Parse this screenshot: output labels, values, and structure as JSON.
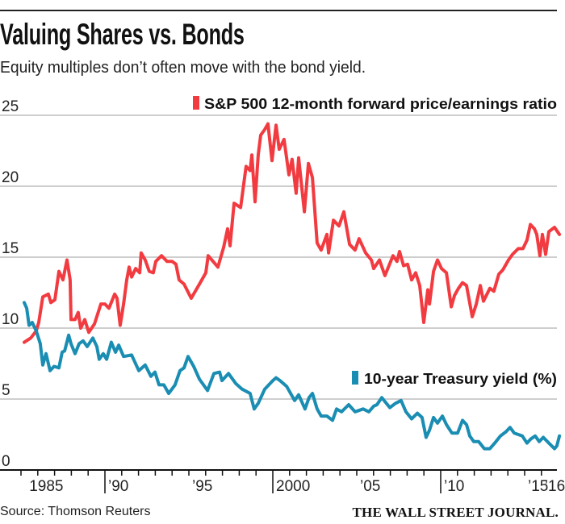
{
  "header": {
    "title": "Valuing Shares vs. Bonds",
    "subtitle": "Equity multiples don’t often move with the bond yield."
  },
  "footer": {
    "source": "Source: Thomson Reuters",
    "publisher": "THE WALL STREET JOURNAL."
  },
  "colors": {
    "pe": "#f23b40",
    "yield": "#1a8db3",
    "grid": "#bdbdbd",
    "axis": "#111111"
  },
  "chart_data": {
    "type": "line",
    "title": "Valuing Shares vs. Bonds",
    "xlabel": "",
    "ylabel": "",
    "xlim": [
      1984.5,
      2017.2
    ],
    "ylim": [
      0,
      25
    ],
    "grid": true,
    "yticks": [
      {
        "value": 0,
        "label": "0"
      },
      {
        "value": 5,
        "label": "5"
      },
      {
        "value": 10,
        "label": "10"
      },
      {
        "value": 15,
        "label": "15"
      },
      {
        "value": 20,
        "label": "20"
      },
      {
        "value": 25,
        "label": "25"
      }
    ],
    "xticks_minor": [
      1985,
      1986,
      1987,
      1988,
      1989,
      1991,
      1992,
      1993,
      1994,
      1995,
      1996,
      1997,
      1998,
      1999,
      2001,
      2002,
      2003,
      2004,
      2005,
      2006,
      2007,
      2008,
      2009,
      2011,
      2012,
      2013,
      2014,
      2015,
      2016
    ],
    "xticks_major": [
      1990,
      2000,
      2010
    ],
    "xtick_labels": [
      {
        "year": 1985.3,
        "label": "1985"
      },
      {
        "year": 1990,
        "label": "’90"
      },
      {
        "year": 1995,
        "label": "’95"
      },
      {
        "year": 2000,
        "label": "2000"
      },
      {
        "year": 2005,
        "label": "’05"
      },
      {
        "year": 2010,
        "label": "’10"
      },
      {
        "year": 2015,
        "label": "’15"
      },
      {
        "year": 2016,
        "label": "’16"
      }
    ],
    "series": [
      {
        "name": "S&P 500 12-month forward price/earnings ratio",
        "legend_position": "top-right",
        "points": [
          [
            1985.19,
            9.0
          ],
          [
            1985.58,
            9.3
          ],
          [
            1985.91,
            9.8
          ],
          [
            1986.06,
            10.4
          ],
          [
            1986.3,
            12.2
          ],
          [
            1986.63,
            12.4
          ],
          [
            1986.78,
            11.8
          ],
          [
            1987.02,
            12.0
          ],
          [
            1987.26,
            14.0
          ],
          [
            1987.5,
            13.4
          ],
          [
            1987.74,
            14.8
          ],
          [
            1987.93,
            13.4
          ],
          [
            1987.98,
            10.6
          ],
          [
            1988.22,
            10.6
          ],
          [
            1988.41,
            11.1
          ],
          [
            1988.56,
            10.0
          ],
          [
            1988.8,
            10.6
          ],
          [
            1989.04,
            9.7
          ],
          [
            1989.38,
            10.3
          ],
          [
            1989.76,
            11.7
          ],
          [
            1990.0,
            11.7
          ],
          [
            1990.24,
            11.4
          ],
          [
            1990.58,
            12.4
          ],
          [
            1990.72,
            12.1
          ],
          [
            1990.91,
            10.2
          ],
          [
            1991.11,
            11.7
          ],
          [
            1991.3,
            13.4
          ],
          [
            1991.44,
            14.3
          ],
          [
            1991.59,
            13.6
          ],
          [
            1991.83,
            14.2
          ],
          [
            1992.07,
            13.9
          ],
          [
            1992.16,
            15.3
          ],
          [
            1992.4,
            14.8
          ],
          [
            1992.64,
            14.0
          ],
          [
            1992.88,
            13.9
          ],
          [
            1993.03,
            14.7
          ],
          [
            1993.37,
            15.1
          ],
          [
            1993.7,
            14.7
          ],
          [
            1994.0,
            14.7
          ],
          [
            1994.23,
            14.5
          ],
          [
            1994.42,
            13.4
          ],
          [
            1994.71,
            13.1
          ],
          [
            1995.14,
            12.1
          ],
          [
            1995.63,
            13.1
          ],
          [
            1996.01,
            13.9
          ],
          [
            1996.15,
            15.1
          ],
          [
            1996.73,
            14.3
          ],
          [
            1997.07,
            15.7
          ],
          [
            1997.31,
            17.0
          ],
          [
            1997.45,
            15.8
          ],
          [
            1997.69,
            18.8
          ],
          [
            1998.08,
            18.5
          ],
          [
            1998.41,
            21.4
          ],
          [
            1998.65,
            21.1
          ],
          [
            1998.75,
            22.2
          ],
          [
            1998.94,
            18.9
          ],
          [
            1999.13,
            22.2
          ],
          [
            1999.28,
            23.6
          ],
          [
            1999.52,
            24.0
          ],
          [
            1999.71,
            24.4
          ],
          [
            1999.95,
            21.8
          ],
          [
            2000.19,
            24.3
          ],
          [
            2000.38,
            22.6
          ],
          [
            2000.67,
            23.3
          ],
          [
            2000.96,
            20.8
          ],
          [
            2001.15,
            21.9
          ],
          [
            2001.39,
            19.5
          ],
          [
            2001.54,
            22.0
          ],
          [
            2001.88,
            18.2
          ],
          [
            2002.12,
            21.6
          ],
          [
            2002.36,
            20.6
          ],
          [
            2002.64,
            16.0
          ],
          [
            2002.88,
            15.5
          ],
          [
            2003.22,
            16.6
          ],
          [
            2003.32,
            15.3
          ],
          [
            2003.61,
            17.6
          ],
          [
            2003.94,
            17.2
          ],
          [
            2004.23,
            18.2
          ],
          [
            2004.57,
            15.9
          ],
          [
            2004.9,
            15.5
          ],
          [
            2005.14,
            16.3
          ],
          [
            2005.53,
            15.3
          ],
          [
            2005.87,
            14.8
          ],
          [
            2006.01,
            14.2
          ],
          [
            2006.35,
            14.8
          ],
          [
            2006.68,
            13.7
          ],
          [
            2007.16,
            15.1
          ],
          [
            2007.4,
            14.7
          ],
          [
            2007.55,
            15.4
          ],
          [
            2007.79,
            14.4
          ],
          [
            2008.03,
            14.5
          ],
          [
            2008.27,
            13.4
          ],
          [
            2008.51,
            13.9
          ],
          [
            2008.75,
            13.0
          ],
          [
            2008.99,
            10.4
          ],
          [
            2009.23,
            12.7
          ],
          [
            2009.33,
            11.7
          ],
          [
            2009.57,
            14.0
          ],
          [
            2009.81,
            14.8
          ],
          [
            2010.05,
            14.2
          ],
          [
            2010.34,
            13.9
          ],
          [
            2010.63,
            11.5
          ],
          [
            2010.82,
            12.3
          ],
          [
            2011.06,
            12.8
          ],
          [
            2011.3,
            13.2
          ],
          [
            2011.54,
            13.0
          ],
          [
            2011.88,
            10.8
          ],
          [
            2012.12,
            11.7
          ],
          [
            2012.36,
            13.0
          ],
          [
            2012.55,
            11.9
          ],
          [
            2012.93,
            12.8
          ],
          [
            2013.17,
            12.6
          ],
          [
            2013.46,
            13.8
          ],
          [
            2013.7,
            14.1
          ],
          [
            2014.04,
            14.8
          ],
          [
            2014.28,
            15.2
          ],
          [
            2014.62,
            15.6
          ],
          [
            2014.9,
            15.6
          ],
          [
            2015.14,
            16.2
          ],
          [
            2015.34,
            17.3
          ],
          [
            2015.58,
            17.0
          ],
          [
            2015.72,
            16.6
          ],
          [
            2015.91,
            15.1
          ],
          [
            2016.06,
            16.6
          ],
          [
            2016.25,
            15.2
          ],
          [
            2016.44,
            16.8
          ],
          [
            2016.78,
            17.1
          ],
          [
            2017.07,
            16.6
          ]
        ]
      },
      {
        "name": "10-year Treasury yield (%)",
        "legend_position": "middle-right",
        "points": [
          [
            1985.19,
            11.8
          ],
          [
            1985.34,
            11.4
          ],
          [
            1985.48,
            10.2
          ],
          [
            1985.67,
            10.4
          ],
          [
            1985.91,
            9.8
          ],
          [
            1986.15,
            8.9
          ],
          [
            1986.3,
            7.4
          ],
          [
            1986.49,
            8.2
          ],
          [
            1986.73,
            7.0
          ],
          [
            1986.97,
            7.3
          ],
          [
            1987.26,
            7.2
          ],
          [
            1987.45,
            8.3
          ],
          [
            1987.6,
            8.4
          ],
          [
            1987.84,
            9.5
          ],
          [
            1987.98,
            8.9
          ],
          [
            1988.22,
            8.2
          ],
          [
            1988.46,
            8.9
          ],
          [
            1988.7,
            9.1
          ],
          [
            1988.94,
            8.7
          ],
          [
            1989.28,
            9.3
          ],
          [
            1989.52,
            8.7
          ],
          [
            1989.66,
            7.8
          ],
          [
            1989.9,
            8.2
          ],
          [
            1990.1,
            7.8
          ],
          [
            1990.38,
            9.0
          ],
          [
            1990.63,
            8.3
          ],
          [
            1990.82,
            8.8
          ],
          [
            1991.11,
            8.0
          ],
          [
            1991.59,
            8.1
          ],
          [
            1992.02,
            7.0
          ],
          [
            1992.4,
            7.4
          ],
          [
            1992.74,
            6.6
          ],
          [
            1992.98,
            6.9
          ],
          [
            1993.22,
            6.0
          ],
          [
            1993.51,
            6.0
          ],
          [
            1993.8,
            5.4
          ],
          [
            1994.18,
            6.0
          ],
          [
            1994.47,
            7.0
          ],
          [
            1994.71,
            7.2
          ],
          [
            1994.95,
            8.0
          ],
          [
            1995.29,
            7.3
          ],
          [
            1995.63,
            6.4
          ],
          [
            1996.11,
            5.6
          ],
          [
            1996.49,
            6.8
          ],
          [
            1996.83,
            6.9
          ],
          [
            1996.97,
            6.3
          ],
          [
            1997.36,
            6.8
          ],
          [
            1997.79,
            6.1
          ],
          [
            1998.17,
            5.7
          ],
          [
            1998.65,
            5.4
          ],
          [
            1998.89,
            4.3
          ],
          [
            1999.13,
            4.7
          ],
          [
            1999.52,
            5.7
          ],
          [
            2000.0,
            6.3
          ],
          [
            2000.19,
            6.5
          ],
          [
            2000.43,
            6.3
          ],
          [
            2000.82,
            5.9
          ],
          [
            2001.3,
            4.9
          ],
          [
            2001.54,
            5.3
          ],
          [
            2001.92,
            4.3
          ],
          [
            2002.16,
            5.1
          ],
          [
            2002.36,
            5.4
          ],
          [
            2002.64,
            4.3
          ],
          [
            2002.88,
            3.8
          ],
          [
            2003.22,
            3.8
          ],
          [
            2003.56,
            3.5
          ],
          [
            2003.8,
            4.3
          ],
          [
            2004.09,
            4.1
          ],
          [
            2004.52,
            4.6
          ],
          [
            2004.9,
            4.1
          ],
          [
            2005.38,
            4.3
          ],
          [
            2005.72,
            4.1
          ],
          [
            2006.01,
            4.5
          ],
          [
            2006.2,
            4.6
          ],
          [
            2006.49,
            5.1
          ],
          [
            2006.97,
            4.4
          ],
          [
            2007.31,
            4.7
          ],
          [
            2007.64,
            4.9
          ],
          [
            2007.93,
            4.1
          ],
          [
            2008.27,
            3.6
          ],
          [
            2008.61,
            4.0
          ],
          [
            2008.89,
            3.7
          ],
          [
            2009.13,
            2.3
          ],
          [
            2009.33,
            2.8
          ],
          [
            2009.57,
            3.7
          ],
          [
            2009.81,
            3.3
          ],
          [
            2010.1,
            3.8
          ],
          [
            2010.34,
            3.2
          ],
          [
            2010.67,
            2.6
          ],
          [
            2011.01,
            2.6
          ],
          [
            2011.3,
            3.5
          ],
          [
            2011.54,
            3.2
          ],
          [
            2011.73,
            2.4
          ],
          [
            2011.97,
            2.0
          ],
          [
            2012.26,
            2.0
          ],
          [
            2012.6,
            1.5
          ],
          [
            2012.93,
            1.5
          ],
          [
            2013.22,
            1.9
          ],
          [
            2013.56,
            2.4
          ],
          [
            2013.89,
            2.7
          ],
          [
            2014.13,
            3.0
          ],
          [
            2014.38,
            2.6
          ],
          [
            2014.86,
            2.4
          ],
          [
            2015.14,
            1.9
          ],
          [
            2015.38,
            2.2
          ],
          [
            2015.63,
            2.4
          ],
          [
            2015.87,
            2.0
          ],
          [
            2016.11,
            2.3
          ],
          [
            2016.44,
            1.9
          ],
          [
            2016.78,
            1.5
          ],
          [
            2016.92,
            1.7
          ],
          [
            2017.07,
            2.4
          ]
        ]
      }
    ]
  }
}
